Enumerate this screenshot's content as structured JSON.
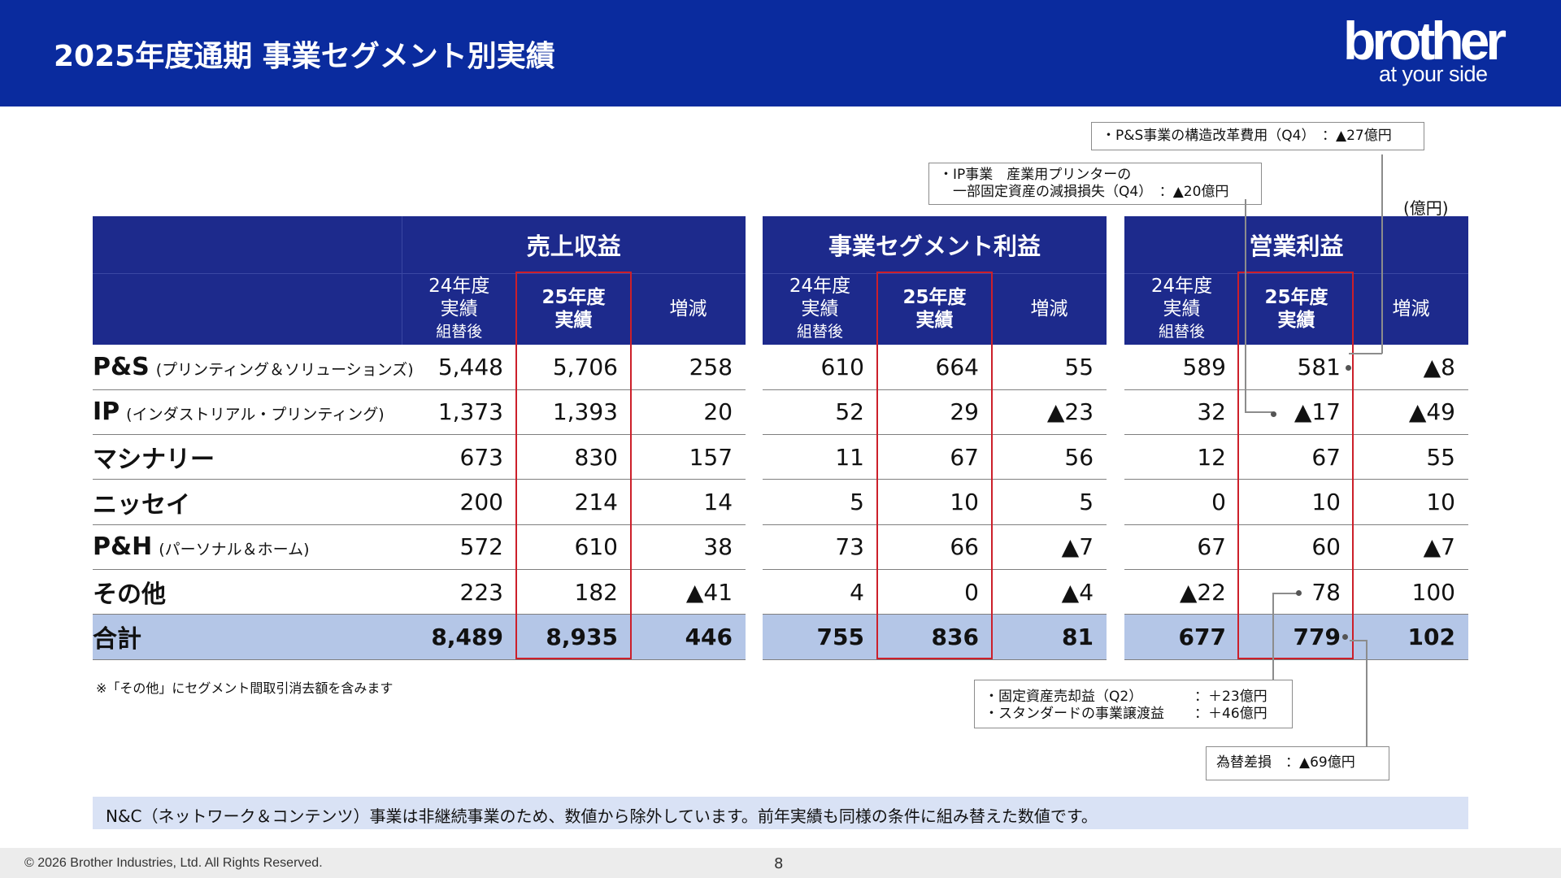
{
  "header": {
    "title": "2025年度通期 事業セグメント別実績",
    "logo_main": "brother",
    "logo_sub": "at your side"
  },
  "unit": "(億円)",
  "groups": [
    {
      "title": "売上収益",
      "col_prev_line1": "24年度",
      "col_prev_line2": "実績",
      "col_prev_line3": "組替後",
      "col_cur_line1": "25年度",
      "col_cur_line2": "実績",
      "col_diff": "増減"
    },
    {
      "title": "事業セグメント利益",
      "col_prev_line1": "24年度",
      "col_prev_line2": "実績",
      "col_prev_line3": "組替後",
      "col_cur_line1": "25年度",
      "col_cur_line2": "実績",
      "col_diff": "増減"
    },
    {
      "title": "営業利益",
      "col_prev_line1": "24年度",
      "col_prev_line2": "実績",
      "col_prev_line3": "組替後",
      "col_cur_line1": "25年度",
      "col_cur_line2": "実績",
      "col_diff": "増減"
    }
  ],
  "rows": [
    {
      "name": "P&S",
      "sub": "(プリンティング＆ソリューションズ)",
      "g": [
        [
          "5,448",
          "5,706",
          "258"
        ],
        [
          "610",
          "664",
          "55"
        ],
        [
          "589",
          "581",
          "▲8"
        ]
      ]
    },
    {
      "name": "IP",
      "sub": "(インダストリアル・プリンティング)",
      "g": [
        [
          "1,373",
          "1,393",
          "20"
        ],
        [
          "52",
          "29",
          "▲23"
        ],
        [
          "32",
          "▲17",
          "▲49"
        ]
      ]
    },
    {
      "name": "マシナリー",
      "sub": "",
      "g": [
        [
          "673",
          "830",
          "157"
        ],
        [
          "11",
          "67",
          "56"
        ],
        [
          "12",
          "67",
          "55"
        ]
      ]
    },
    {
      "name": "ニッセイ",
      "sub": "",
      "g": [
        [
          "200",
          "214",
          "14"
        ],
        [
          "5",
          "10",
          "5"
        ],
        [
          "0",
          "10",
          "10"
        ]
      ]
    },
    {
      "name": "P&H",
      "sub": "(パーソナル＆ホーム)",
      "g": [
        [
          "572",
          "610",
          "38"
        ],
        [
          "73",
          "66",
          "▲7"
        ],
        [
          "67",
          "60",
          "▲7"
        ]
      ]
    },
    {
      "name": "その他",
      "sub": "",
      "g": [
        [
          "223",
          "182",
          "▲41"
        ],
        [
          "4",
          "0",
          "▲4"
        ],
        [
          "▲22",
          "78",
          "100"
        ]
      ]
    },
    {
      "name": "合計",
      "sub": "",
      "g": [
        [
          "8,489",
          "8,935",
          "446"
        ],
        [
          "755",
          "836",
          "81"
        ],
        [
          "677",
          "779",
          "102"
        ]
      ]
    }
  ],
  "callouts": {
    "ps_restructure": "・P&S事業の構造改革費用（Q4）　：▲27億円",
    "ip_line1": "・IP事業　産業用プリンターの",
    "ip_line2": "　一部固定資産の減損損失（Q4）　：▲20億円",
    "other_line1_label": "・固定資産売却益（Q2）",
    "other_line1_value": "：＋23億円",
    "other_line2_label": "・スタンダードの事業譲渡益",
    "other_line2_value": "：＋46億円",
    "fx": "為替差損　：▲69億円"
  },
  "note": "※「その他」にセグメント間取引消去額を含みます",
  "infobar": "N&C（ネットワーク＆コンテンツ）事業は非継続事業のため、数値から除外しています。前年実績も同様の条件に組み替えた数値です。",
  "footer": {
    "copyright": "© 2026 Brother Industries, Ltd. All Rights Reserved.",
    "page": "8"
  }
}
